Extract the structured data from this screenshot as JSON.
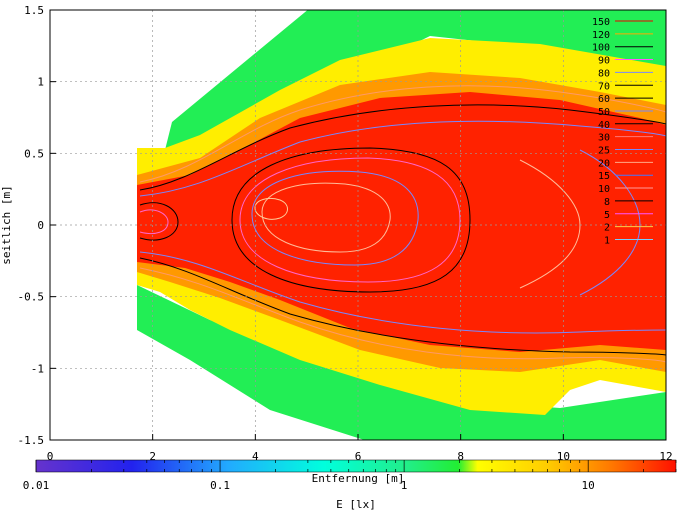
{
  "chart_data": {
    "type": "heatmap",
    "title": "",
    "xlabel": "Entfernung [m]",
    "ylabel": "seitlich [m]",
    "colorbar_label": "E [lx]",
    "xlim": [
      0,
      12
    ],
    "ylim": [
      -1.5,
      1.5
    ],
    "x_ticks": [
      "0",
      "2",
      "4",
      "6",
      "8",
      "10",
      "12"
    ],
    "x_tick_values": [
      0,
      2,
      4,
      6,
      8,
      10,
      12
    ],
    "y_ticks": [
      "1.5",
      "1",
      "0.5",
      "0",
      "-0.5",
      "-1",
      "-1.5"
    ],
    "y_tick_values": [
      1.5,
      1,
      0.5,
      0,
      -0.5,
      -1,
      -1.5
    ],
    "colorbar_ticks": [
      "0.01",
      "0.1",
      "1",
      "10"
    ],
    "colorbar_tick_values": [
      0.01,
      0.1,
      1,
      10
    ],
    "colorbar_range": [
      0.01,
      30
    ],
    "colorbar_scale": "log",
    "grid": true,
    "legend_position": "top-right",
    "contour_levels": [
      "150",
      "120",
      "100",
      "90",
      "80",
      "70",
      "60",
      "50",
      "40",
      "30",
      "25",
      "20",
      "15",
      "10",
      "8",
      "5",
      "2",
      "1"
    ],
    "contour_colors": [
      "#ee0000",
      "#ffaa00",
      "#000000",
      "#ff55ff",
      "#7788ff",
      "#000000",
      "#000000",
      "#7788ff",
      "#000000",
      "#ff7777",
      "#7788ff",
      "#ffaa88",
      "#4477ff",
      "#ff9999",
      "#000000",
      "#ff55ff",
      "#ffcc44",
      "#77ccff"
    ],
    "colors": {
      "green": "#22ee55",
      "yellow": "#ffee00",
      "orange": "#ff9900",
      "red": "#ff2200",
      "grid": "#9a9a9a"
    }
  }
}
